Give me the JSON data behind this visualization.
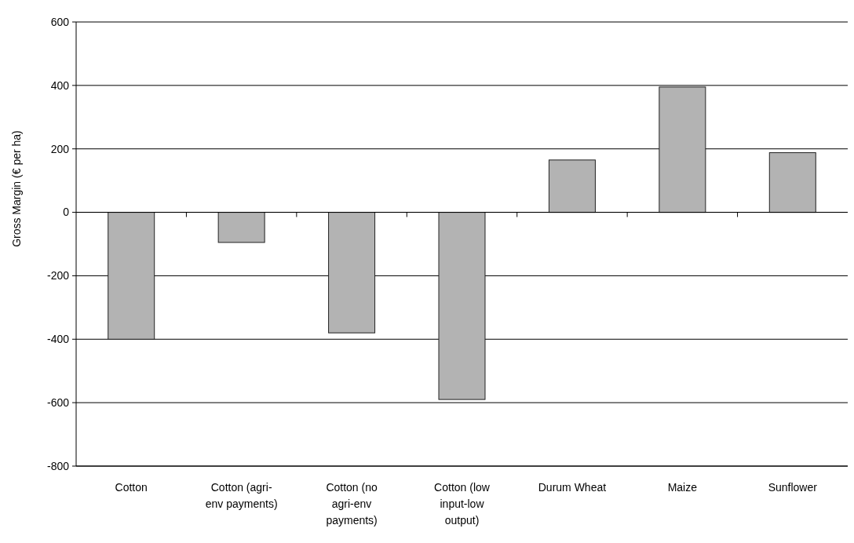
{
  "chart_data": {
    "type": "bar",
    "ylabel": "Gross Margin (€ per ha)",
    "categories": [
      "Cotton",
      "Cotton (agri-env payments)",
      "Cotton (no agri-env payments)",
      "Cotton (low input-low output)",
      "Durum Wheat",
      "Maize",
      "Sunflower"
    ],
    "values": [
      -400,
      -95,
      -380,
      -590,
      165,
      395,
      188
    ],
    "color": "#b3b3b3",
    "ylim": [
      -800,
      600
    ],
    "yticks": [
      -800,
      -600,
      -400,
      -200,
      0,
      200,
      400,
      600
    ],
    "grid": "y"
  }
}
